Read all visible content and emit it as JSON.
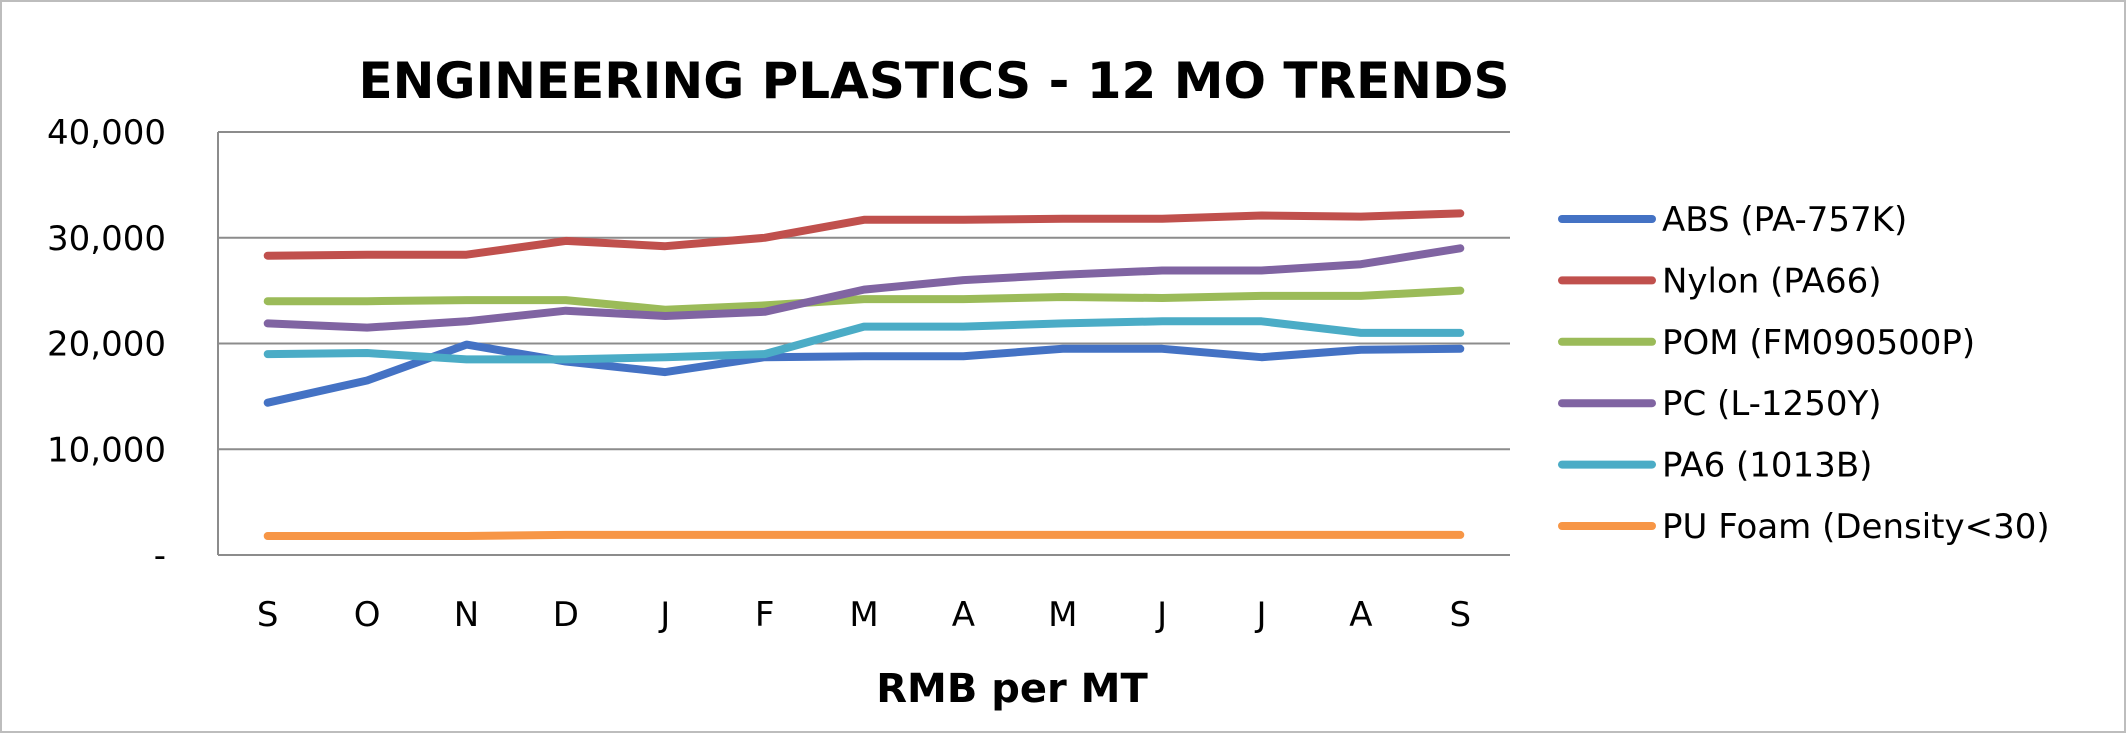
{
  "chart_data": {
    "type": "line",
    "title": "ENGINEERING PLASTICS - 12 MO TRENDS",
    "xlabel": "RMB per MT",
    "ylabel": "",
    "categories": [
      "S",
      "O",
      "N",
      "D",
      "J",
      "F",
      "M",
      "A",
      "M",
      "J",
      "J",
      "A",
      "S"
    ],
    "ylim": [
      0,
      40000
    ],
    "yticks": [
      0,
      10000,
      20000,
      30000,
      40000
    ],
    "ytick_labels": [
      "-",
      "10,000",
      "20,000",
      "30,000",
      "40,000"
    ],
    "grid": true,
    "legend_position": "right",
    "series": [
      {
        "name": "ABS (PA-757K)",
        "color": "#4472C4",
        "values": [
          14400,
          16500,
          19900,
          18300,
          17300,
          18700,
          18800,
          18800,
          19500,
          19500,
          18700,
          19400,
          19500
        ]
      },
      {
        "name": "Nylon (PA66)",
        "color": "#C0504D",
        "values": [
          28300,
          28400,
          28400,
          29700,
          29200,
          30000,
          31700,
          31700,
          31800,
          31800,
          32100,
          32000,
          32300
        ]
      },
      {
        "name": "POM (FM090500P)",
        "color": "#9BBB59",
        "values": [
          24000,
          24000,
          24100,
          24100,
          23200,
          23600,
          24200,
          24200,
          24400,
          24300,
          24500,
          24500,
          25000
        ]
      },
      {
        "name": "PC (L-1250Y)",
        "color": "#8064A2",
        "values": [
          21900,
          21500,
          22100,
          23100,
          22600,
          23000,
          25100,
          26000,
          26500,
          26900,
          26900,
          27500,
          29000
        ]
      },
      {
        "name": "PA6 (1013B)",
        "color": "#4BACC6",
        "values": [
          19000,
          19100,
          18500,
          18500,
          18700,
          19000,
          21600,
          21600,
          21900,
          22100,
          22100,
          21000,
          21000
        ]
      },
      {
        "name": "PU Foam (Density<30)",
        "color": "#F79646",
        "values": [
          1800,
          1800,
          1800,
          1900,
          1900,
          1900,
          1900,
          1900,
          1900,
          1900,
          1900,
          1900,
          1900
        ]
      }
    ]
  }
}
